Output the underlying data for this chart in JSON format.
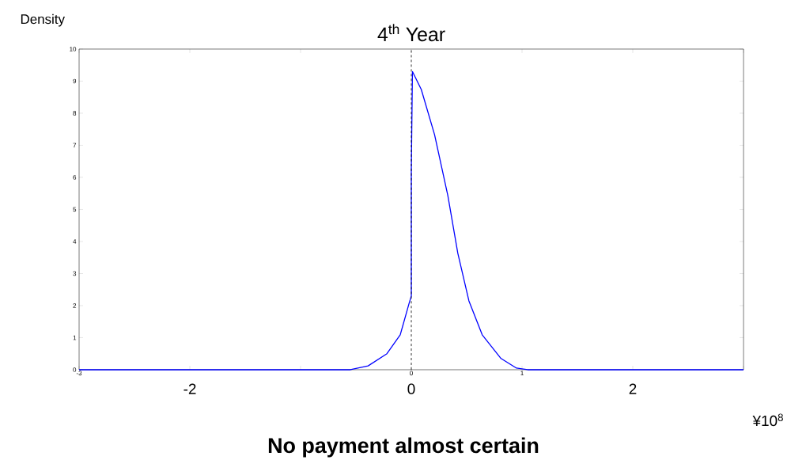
{
  "chart_data": {
    "type": "line",
    "title": "4$^{th}$ Year",
    "ylabel": "Density",
    "x2label": "¥10$^{8}$",
    "annotations": [
      "No payment almost certain"
    ],
    "x": [
      -3,
      -0.55,
      -0.39,
      -0.22,
      -0.1,
      -0.02,
      0,
      0,
      0.01,
      0.09,
      0.21,
      0.33,
      0.42,
      0.52,
      0.64,
      0.81,
      0.95,
      1.05,
      3
    ],
    "series": [
      {
        "color": "#0000ff",
        "values": [
          0,
          0,
          0.12,
          0.5,
          1.09,
          2.07,
          2.3,
          6.2,
          9.3,
          8.74,
          7.33,
          5.43,
          3.63,
          2.15,
          1.09,
          0.35,
          0.05,
          0,
          0
        ]
      }
    ],
    "xlim": [
      -3,
      3
    ],
    "ylim": [
      0,
      10
    ],
    "xticks": [
      -3,
      {
        "value": -2,
        "label": null
      },
      {
        "value": -1,
        "label": null
      },
      0,
      1,
      {
        "value": 2,
        "label": null
      },
      {
        "value": 3,
        "label": null
      }
    ],
    "yticks": [
      0,
      1,
      2,
      3,
      4,
      5,
      6,
      7,
      8,
      9,
      10
    ],
    "x2lim": [
      -3,
      3
    ],
    "x2ticks": [
      -2,
      0,
      2
    ],
    "ref_lines": [
      {
        "axis": "x",
        "value": 0,
        "color": "#000000",
        "line_style": "dashed"
      }
    ],
    "grid": false,
    "marker": "none",
    "line_style": "solid"
  }
}
